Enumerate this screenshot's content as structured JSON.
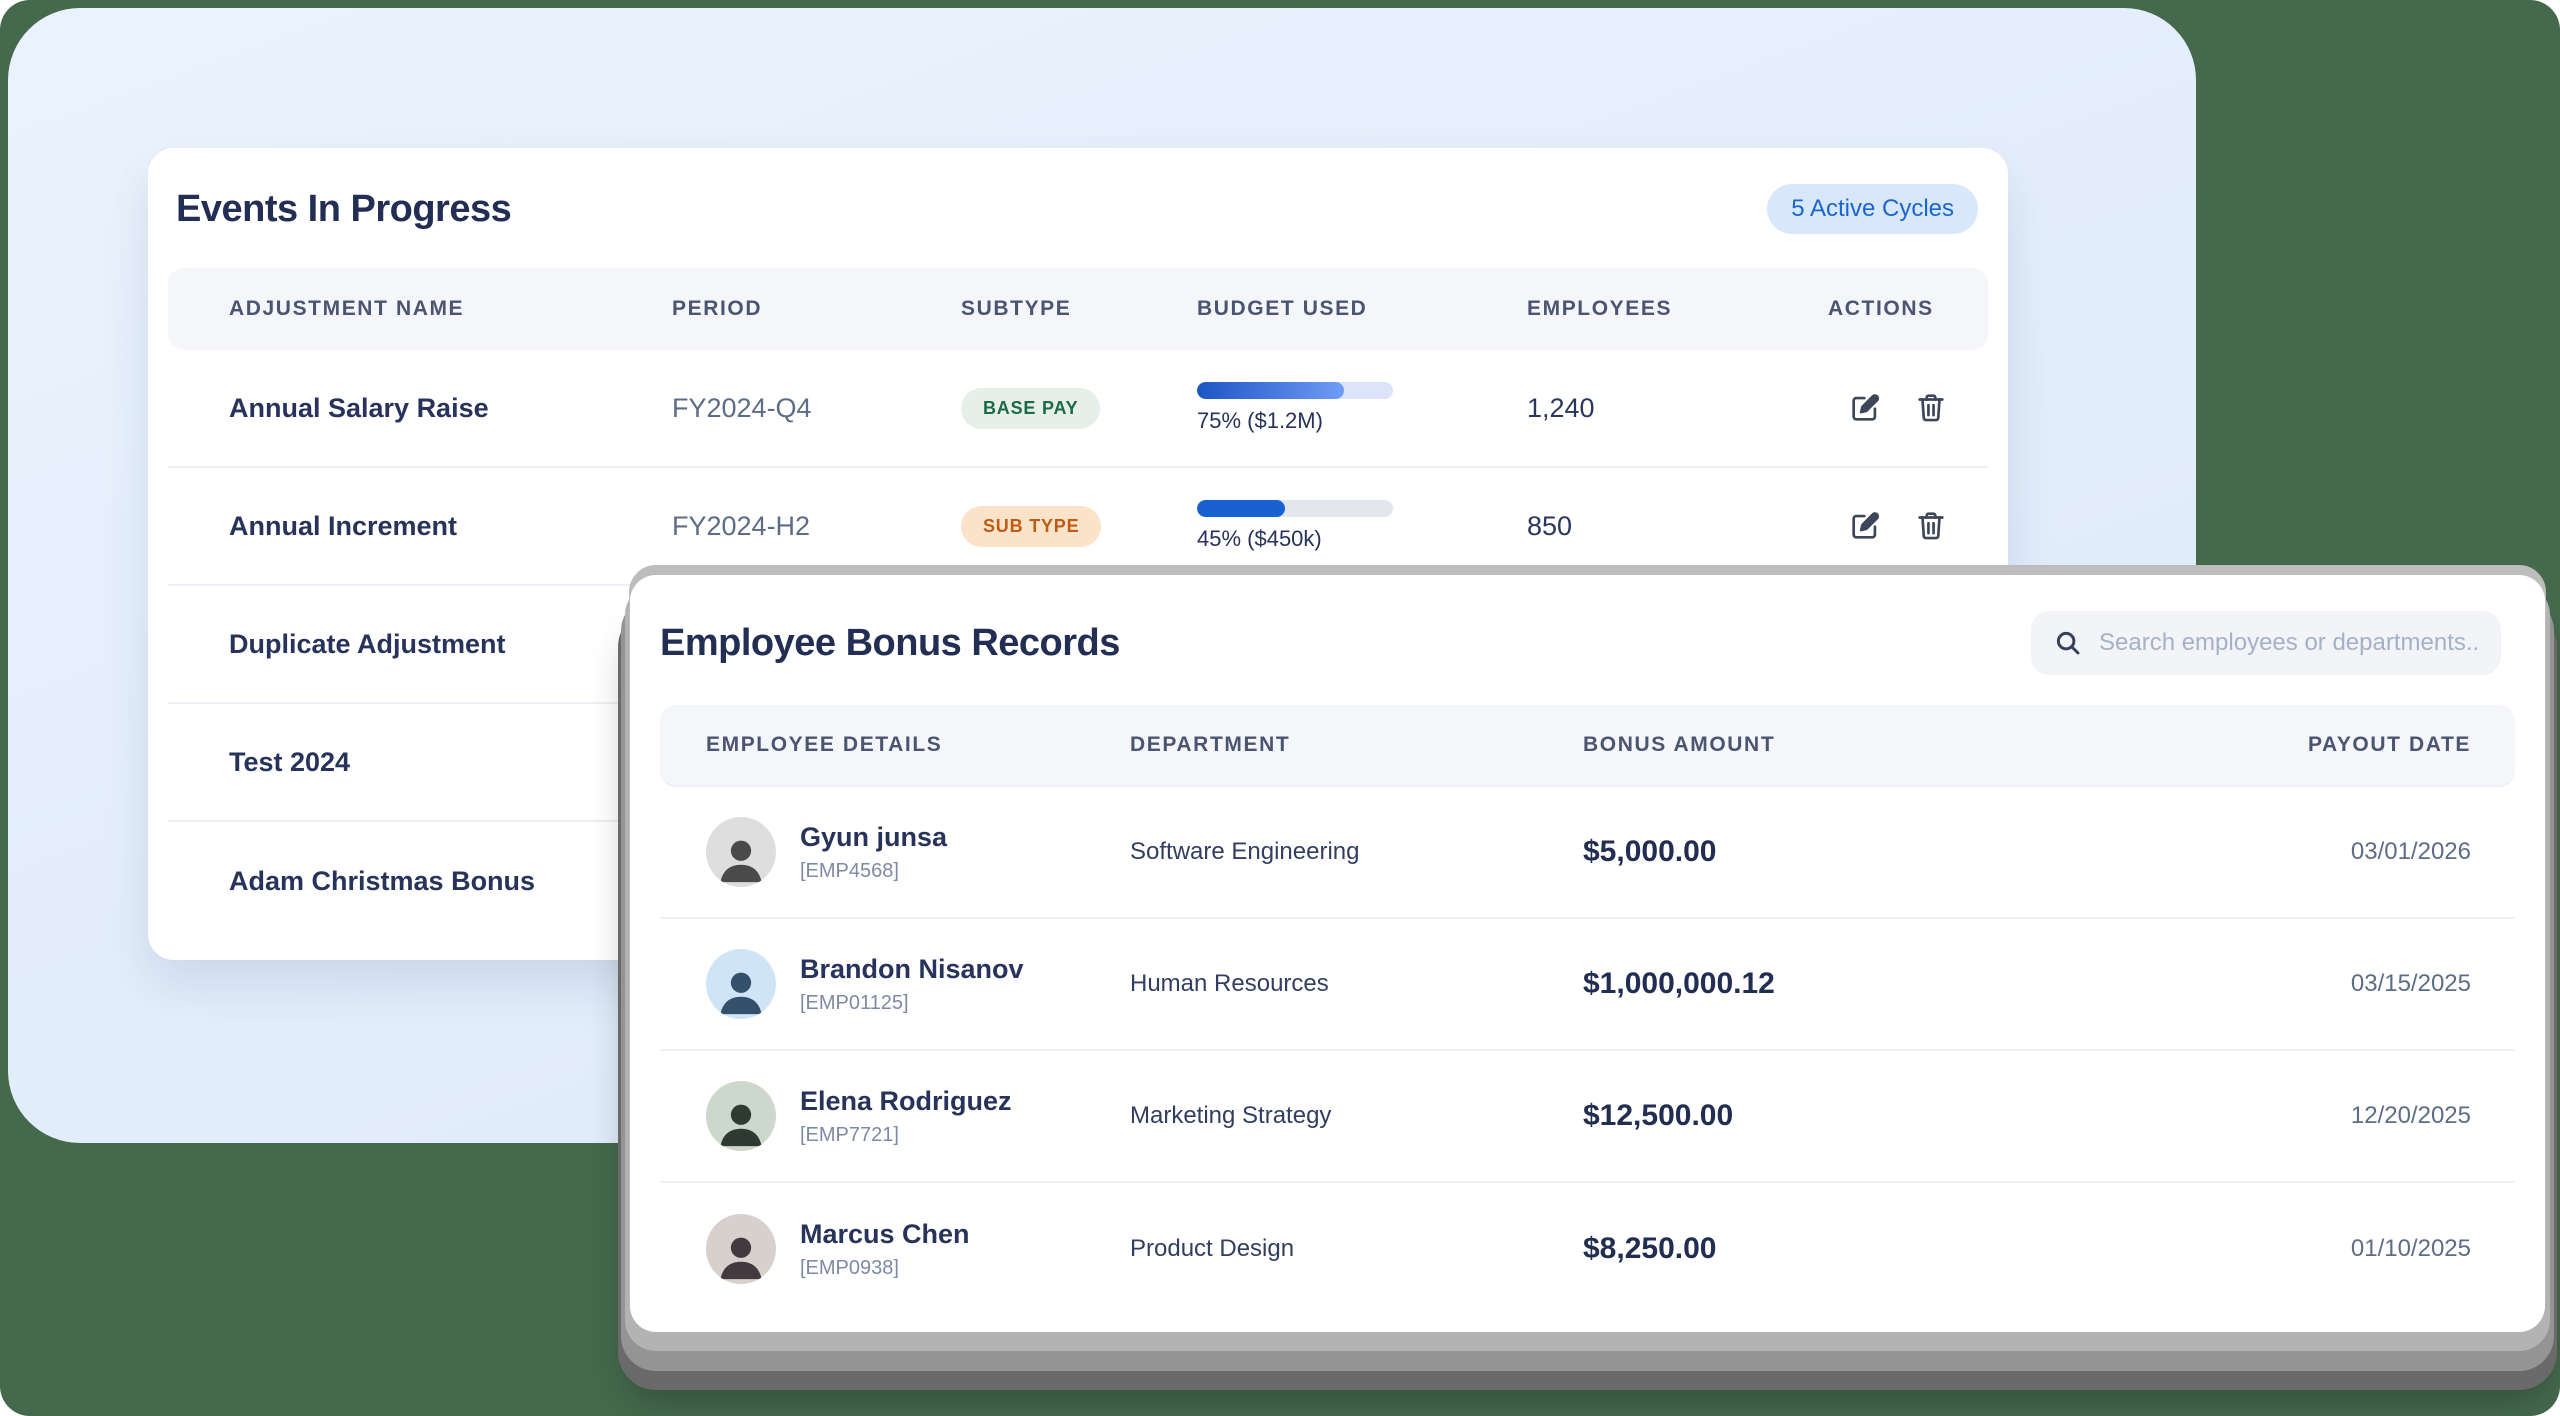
{
  "colors": {
    "background_green": "#45694D",
    "panel_blue": "#E3EEFB",
    "accent_blue": "#1A66D1",
    "badge_green_text": "#1A6B47",
    "badge_orange_text": "#C05A15",
    "progress_blue": "#1D55C4",
    "title_navy": "#232E55"
  },
  "events_card": {
    "title": "Events In Progress",
    "badge_label": "5 Active Cycles",
    "columns": [
      "ADJUSTMENT NAME",
      "PERIOD",
      "SUBTYPE",
      "BUDGET USED",
      "EMPLOYEES",
      "ACTIONS"
    ],
    "rows": [
      {
        "name": "Annual Salary Raise",
        "period": "FY2024-Q4",
        "subtype": "BASE PAY",
        "progress_pct": 75,
        "progress_label": "75% ($1.2M)",
        "employees": "1,240"
      },
      {
        "name": "Annual Increment",
        "period": "FY2024-H2",
        "subtype": "SUB TYPE",
        "progress_pct": 45,
        "progress_label": "45% ($450k)",
        "employees": "850"
      },
      {
        "name": "Duplicate Adjustment"
      },
      {
        "name": "Test 2024"
      },
      {
        "name": "Adam Christmas Bonus"
      }
    ]
  },
  "bonus_card": {
    "title": "Employee Bonus Records",
    "search_placeholder": "Search employees or departments...",
    "columns": [
      "EMPLOYEE DETAILS",
      "DEPARTMENT",
      "BONUS AMOUNT",
      "PAYOUT DATE"
    ],
    "rows": [
      {
        "name": "Gyun junsa",
        "emp_id": "[EMP4568]",
        "department": "Software Engineering",
        "amount": "$5,000.00",
        "date": "03/01/2026"
      },
      {
        "name": "Brandon Nisanov",
        "emp_id": "[EMP01125]",
        "department": "Human Resources",
        "amount": "$1,000,000.12",
        "date": "03/15/2025"
      },
      {
        "name": "Elena Rodriguez",
        "emp_id": "[EMP7721]",
        "department": "Marketing Strategy",
        "amount": "$12,500.00",
        "date": "12/20/2025"
      },
      {
        "name": "Marcus Chen",
        "emp_id": "[EMP0938]",
        "department": "Product Design",
        "amount": "$8,250.00",
        "date": "01/10/2025"
      }
    ]
  }
}
